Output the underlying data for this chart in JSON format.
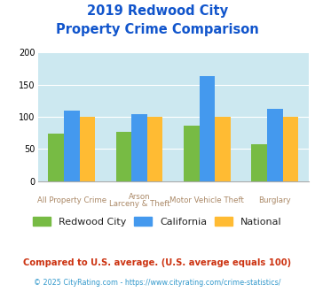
{
  "title_line1": "2019 Redwood City",
  "title_line2": "Property Crime Comparison",
  "cat_labels_line1": [
    "All Property Crime",
    "Arson",
    "Motor Vehicle Theft",
    "Burglary"
  ],
  "cat_labels_line2": [
    "",
    "Larceny & Theft",
    "",
    ""
  ],
  "redwood_city": [
    74,
    76,
    86,
    57
  ],
  "california": [
    110,
    104,
    163,
    113
  ],
  "national": [
    100,
    100,
    100,
    100
  ],
  "colors": {
    "redwood_city": "#77bb44",
    "california": "#4499ee",
    "national": "#ffbb33"
  },
  "ylim": [
    0,
    200
  ],
  "yticks": [
    0,
    50,
    100,
    150,
    200
  ],
  "legend_labels": [
    "Redwood City",
    "California",
    "National"
  ],
  "footnote1": "Compared to U.S. average. (U.S. average equals 100)",
  "footnote2": "© 2025 CityRating.com - https://www.cityrating.com/crime-statistics/",
  "bg_color": "#ddeeff",
  "plot_bg_color": "#cce8f0",
  "title_color": "#1155cc",
  "xlabel_color": "#aa8866",
  "legend_text_color": "#222222",
  "footnote1_color": "#cc3311",
  "footnote2_color": "#3399cc"
}
